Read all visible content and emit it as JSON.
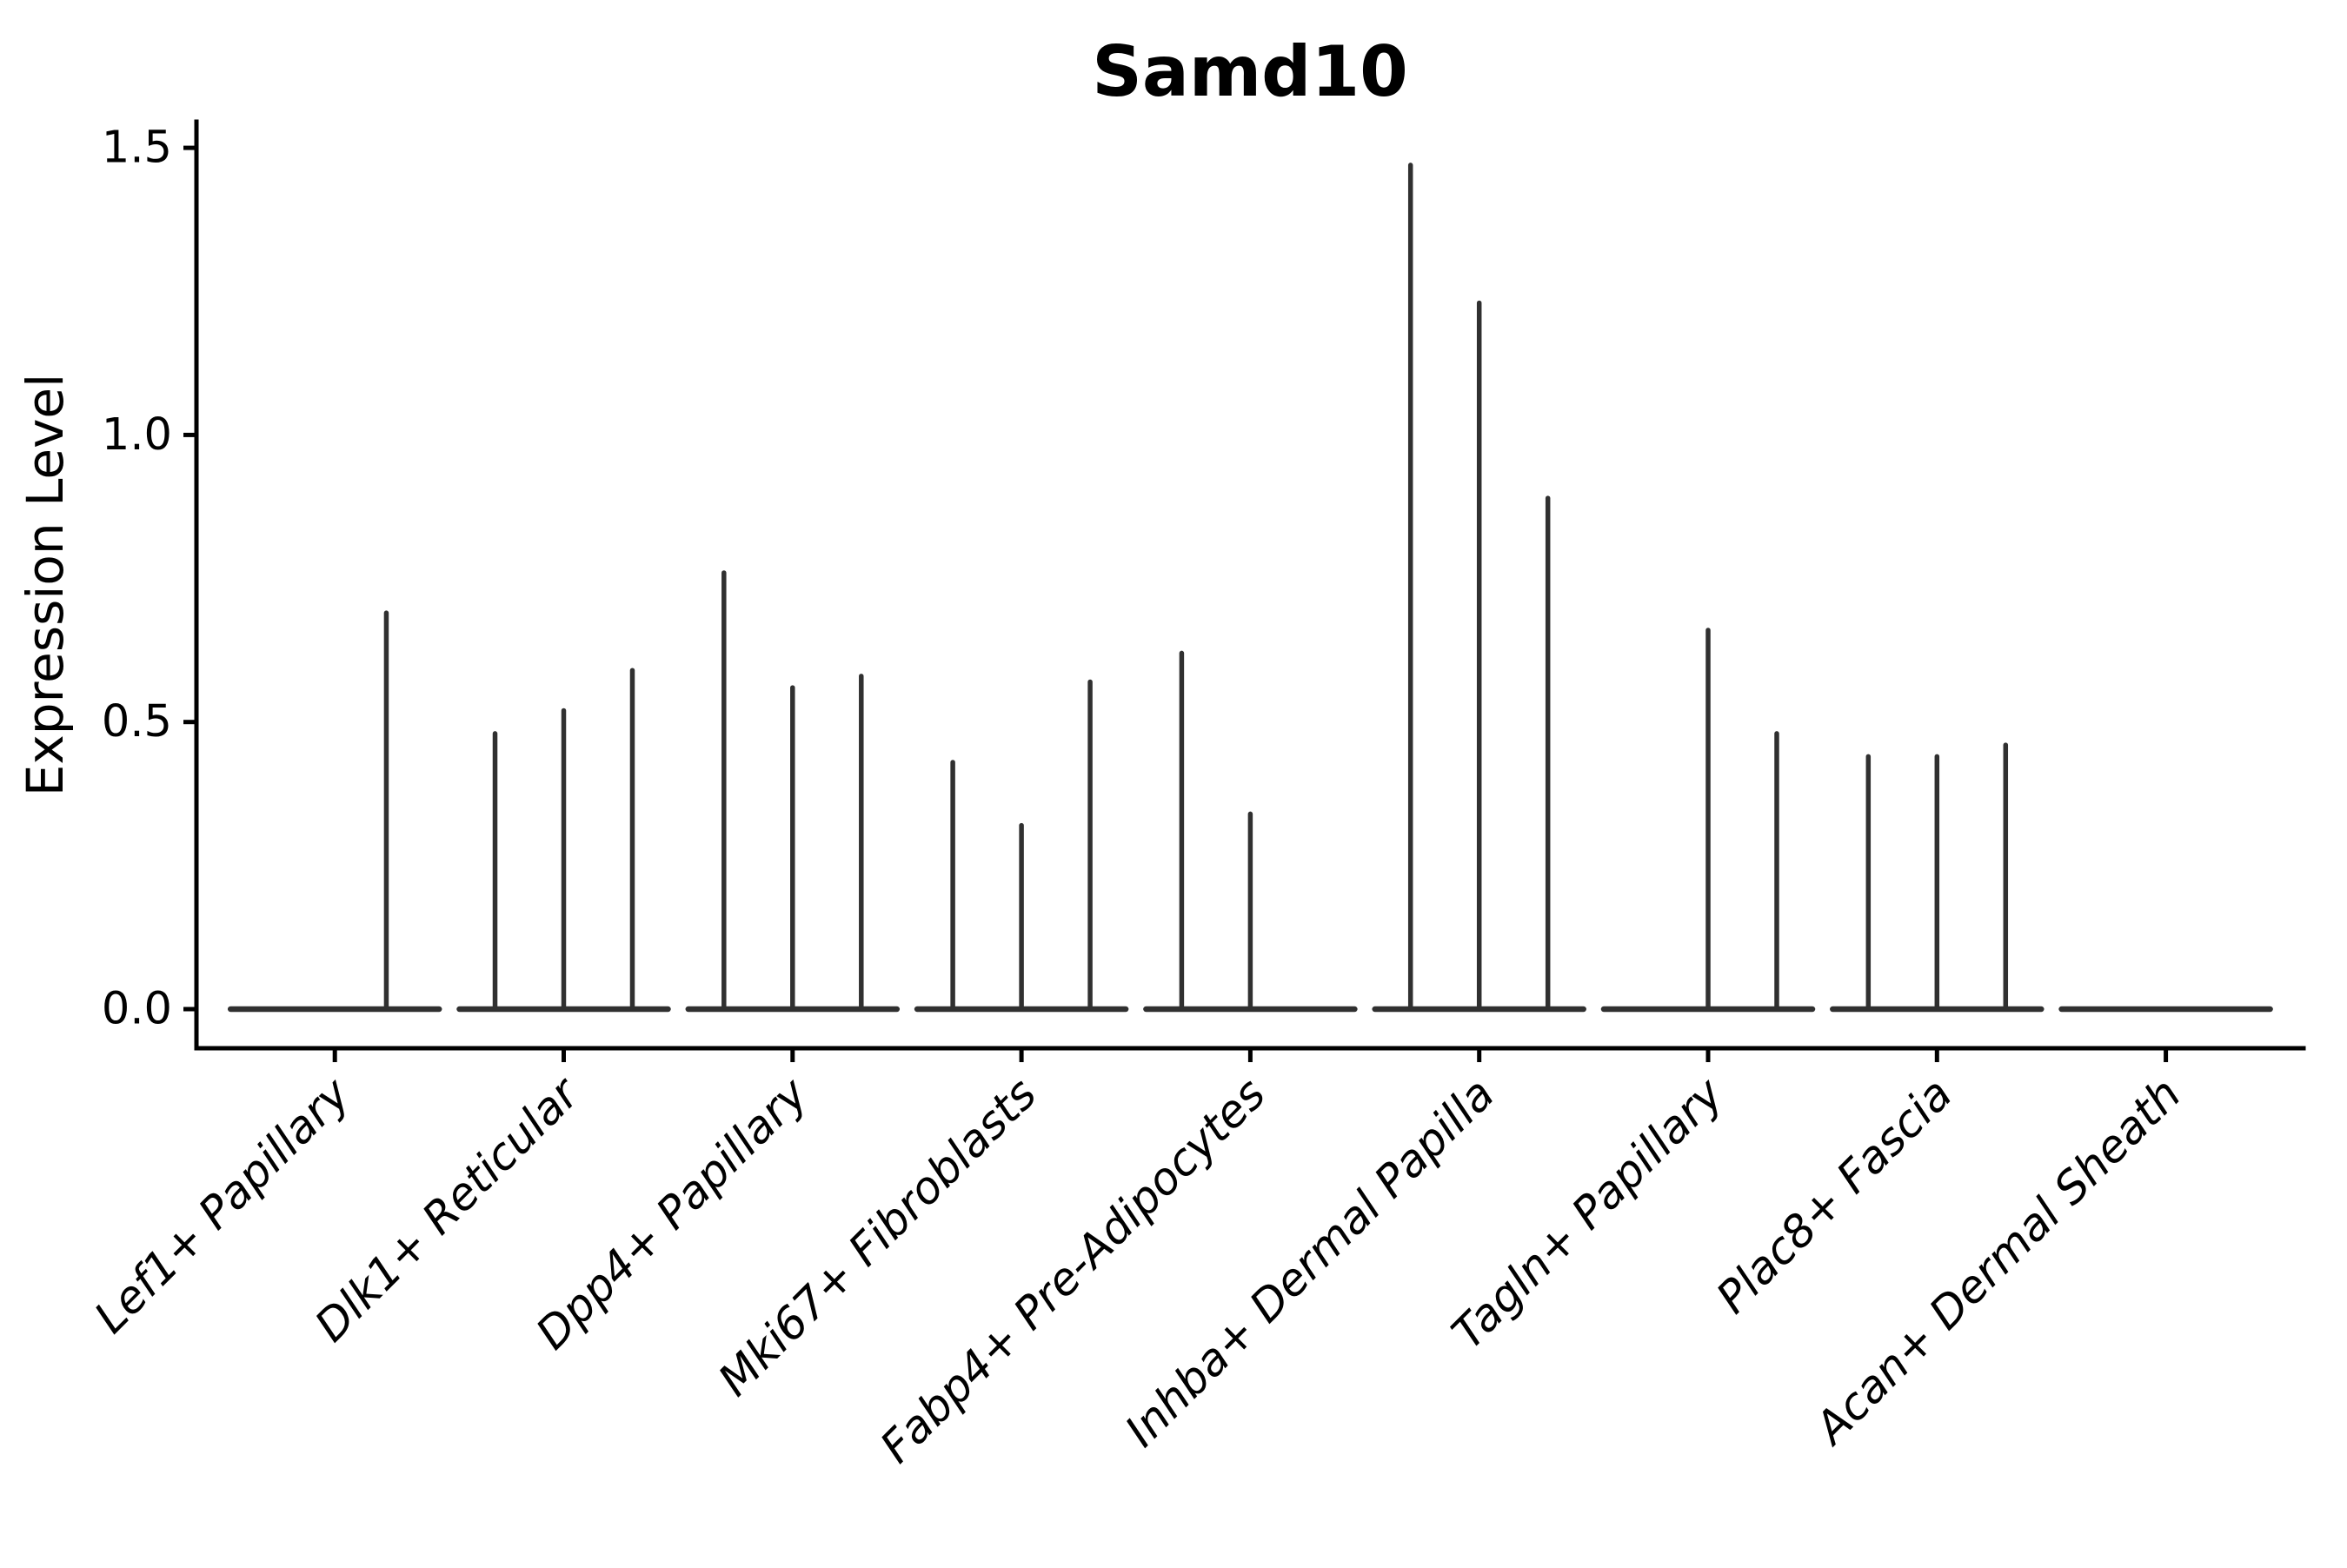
{
  "chart_data": {
    "type": "violin",
    "title": "Samd10",
    "ylabel": "Expression Level",
    "xlabel": "",
    "ylim": [
      -0.07,
      1.55
    ],
    "yticks": [
      0.0,
      0.5,
      1.0,
      1.5
    ],
    "ytick_labels": [
      "0.0",
      "0.5",
      "1.0",
      "1.5"
    ],
    "grid": false,
    "legend": null,
    "x_label_rotation_deg": 45,
    "categories": [
      {
        "label": "Lef1+ Papillary",
        "violin_offsets": [
          -0.225,
          0.225
        ],
        "violin_max": [
          0.0,
          0.69
        ]
      },
      {
        "label": "Dlk1+ Reticular",
        "violin_offsets": [
          -0.3,
          0.0,
          0.3
        ],
        "violin_max": [
          0.48,
          0.52,
          0.59
        ]
      },
      {
        "label": "Dpp4+ Papillary",
        "violin_offsets": [
          -0.3,
          0.0,
          0.3
        ],
        "violin_max": [
          0.76,
          0.56,
          0.58
        ]
      },
      {
        "label": "Mki67+ Fibroblasts",
        "violin_offsets": [
          -0.3,
          0.0,
          0.3
        ],
        "violin_max": [
          0.43,
          0.32,
          0.57
        ]
      },
      {
        "label": "Fabp4+ Pre-Adipocytes",
        "violin_offsets": [
          -0.3,
          0.0,
          0.3
        ],
        "violin_max": [
          0.62,
          0.34,
          0.0
        ]
      },
      {
        "label": "Inhba+ Dermal Papilla",
        "violin_offsets": [
          -0.3,
          0.0,
          0.3
        ],
        "violin_max": [
          1.47,
          1.23,
          0.89
        ]
      },
      {
        "label": "Tagln+ Papillary",
        "violin_offsets": [
          -0.3,
          0.0,
          0.3
        ],
        "violin_max": [
          0.0,
          0.66,
          0.48
        ]
      },
      {
        "label": "Plac8+ Fascia",
        "violin_offsets": [
          -0.3,
          0.0,
          0.3
        ],
        "violin_max": [
          0.44,
          0.44,
          0.46
        ]
      },
      {
        "label": "Acan+ Dermal Sheath",
        "violin_offsets": [
          -0.3,
          0.0,
          0.3
        ],
        "violin_max": [
          0.0,
          0.0,
          0.0
        ]
      }
    ],
    "colors": {
      "violin_line": "#303030",
      "axis": "#000000",
      "text": "#000000",
      "background": "#ffffff"
    }
  }
}
